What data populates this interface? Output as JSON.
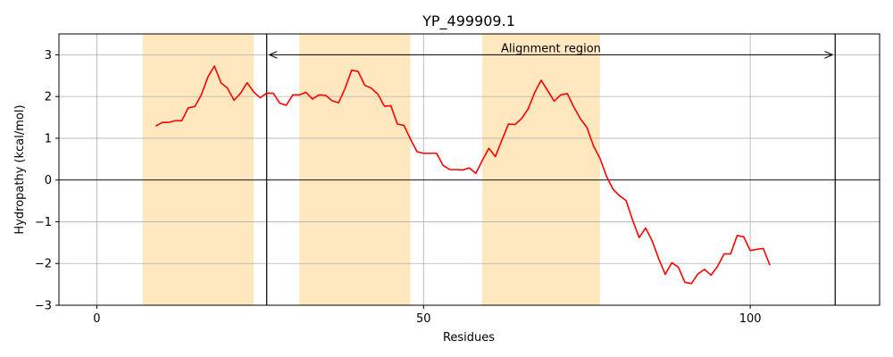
{
  "chart_data": {
    "type": "line",
    "title": "YP_499909.1",
    "xlabel": "Residues",
    "ylabel": "Hydropathy (kcal/mol)",
    "xlim": [
      -5.8,
      119.8
    ],
    "ylim": [
      -3,
      3.5
    ],
    "xticks": [
      0,
      50,
      100
    ],
    "yticks": [
      -3,
      -2,
      -1,
      0,
      1,
      2,
      3
    ],
    "grid": true,
    "zero_line": true,
    "shaded_regions": [
      [
        7,
        24
      ],
      [
        31,
        48
      ],
      [
        59,
        77
      ]
    ],
    "region_color": "#ffe7c0",
    "line_color": "#ff0000",
    "annotation": {
      "text": "Alignment region",
      "x_start": 26,
      "x_end": 113,
      "y": 3.0
    },
    "series": [
      {
        "x": [
          9,
          10,
          11,
          12,
          13,
          14,
          15,
          16,
          17,
          18,
          19,
          20,
          21,
          22,
          23,
          24,
          25,
          26,
          27,
          28,
          29,
          30,
          31,
          32,
          33,
          34,
          35,
          36,
          37,
          38,
          39,
          40,
          41,
          42,
          43,
          44,
          45,
          46,
          47,
          48,
          49,
          50,
          51,
          52,
          53,
          54,
          55,
          56,
          57,
          58,
          59,
          60,
          61,
          62,
          63,
          64,
          65,
          66,
          67,
          68,
          69,
          70,
          71,
          72,
          73,
          74,
          75,
          76,
          77,
          78,
          79,
          80,
          81,
          82,
          83,
          84,
          85,
          86,
          87,
          88,
          89,
          90,
          91,
          92,
          93,
          94,
          95,
          96,
          97,
          98,
          99,
          100,
          101,
          102,
          103
        ],
        "values": [
          1.29,
          1.38,
          1.38,
          1.42,
          1.42,
          1.73,
          1.76,
          2.04,
          2.47,
          2.73,
          2.33,
          2.2,
          1.91,
          2.08,
          2.33,
          2.11,
          1.97,
          2.08,
          2.08,
          1.84,
          1.79,
          2.04,
          2.04,
          2.1,
          1.94,
          2.04,
          2.03,
          1.9,
          1.85,
          2.2,
          2.63,
          2.6,
          2.27,
          2.2,
          2.06,
          1.77,
          1.78,
          1.34,
          1.31,
          0.98,
          0.68,
          0.64,
          0.64,
          0.64,
          0.35,
          0.25,
          0.25,
          0.24,
          0.29,
          0.16,
          0.47,
          0.76,
          0.56,
          0.96,
          1.34,
          1.33,
          1.47,
          1.7,
          2.09,
          2.39,
          2.14,
          1.89,
          2.04,
          2.07,
          1.75,
          1.47,
          1.26,
          0.82,
          0.52,
          0.09,
          -0.22,
          -0.38,
          -0.49,
          -0.96,
          -1.38,
          -1.15,
          -1.46,
          -1.89,
          -2.26,
          -1.98,
          -2.09,
          -2.45,
          -2.48,
          -2.25,
          -2.14,
          -2.28,
          -2.07,
          -1.77,
          -1.77,
          -1.33,
          -1.36,
          -1.69,
          -1.66,
          -1.64,
          -2.04
        ]
      }
    ]
  }
}
